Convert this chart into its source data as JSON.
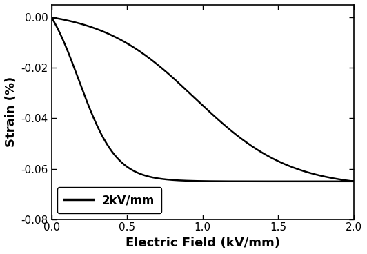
{
  "title": "",
  "xlabel": "Electric Field (kV/mm)",
  "ylabel": "Strain (%)",
  "xlim": [
    0.0,
    2.0
  ],
  "ylim": [
    -0.08,
    0.005
  ],
  "legend_label": "2kV/mm",
  "line_color": "#000000",
  "line_width": 1.8,
  "background_color": "#ffffff",
  "xticks": [
    0.0,
    0.5,
    1.0,
    1.5,
    2.0
  ],
  "yticks": [
    0.0,
    -0.02,
    -0.04,
    -0.06,
    -0.08
  ],
  "xlabel_fontsize": 13,
  "ylabel_fontsize": 13,
  "tick_fontsize": 11,
  "legend_fontsize": 12
}
